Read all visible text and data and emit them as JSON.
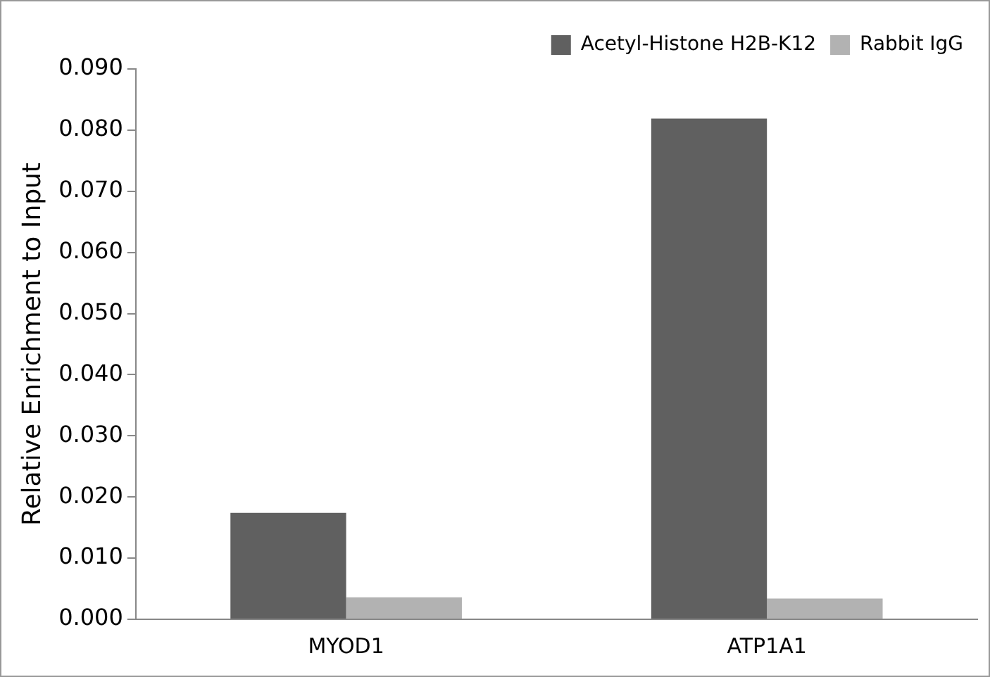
{
  "chart_data": {
    "type": "bar",
    "ylabel": "Relative Enrichment to Input",
    "categories": [
      "MYOD1",
      "ATP1A1"
    ],
    "series": [
      {
        "name": "Acetyl-Histone H2B-K12",
        "color": "#606060",
        "values": [
          0.0174,
          0.0819
        ]
      },
      {
        "name": "Rabbit IgG",
        "color": "#b2b2b2",
        "values": [
          0.0036,
          0.0034
        ]
      }
    ],
    "ylim": [
      0,
      0.09
    ],
    "yticks": [
      {
        "value": 0,
        "label": "0.000"
      },
      {
        "value": 0.01,
        "label": "0.010"
      },
      {
        "value": 0.02,
        "label": "0.020"
      },
      {
        "value": 0.03,
        "label": "0.030"
      },
      {
        "value": 0.04,
        "label": "0.040"
      },
      {
        "value": 0.05,
        "label": "0.050"
      },
      {
        "value": 0.06,
        "label": "0.060"
      },
      {
        "value": 0.07,
        "label": "0.070"
      },
      {
        "value": 0.08,
        "label": "0.080"
      },
      {
        "value": 0.09,
        "label": "0.090"
      }
    ],
    "grid": false,
    "legend": "top right"
  }
}
